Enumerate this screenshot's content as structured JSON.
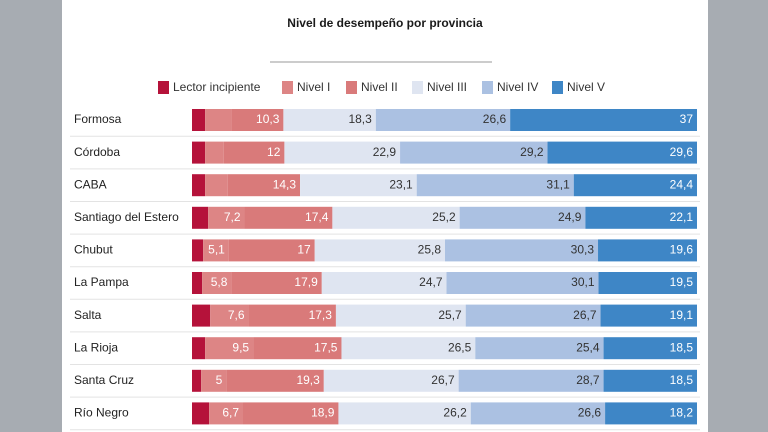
{
  "chart_data": {
    "type": "stacked-bar",
    "orientation": "horizontal",
    "title": "Nivel de desempeño por provincia",
    "categories": [
      "Formosa",
      "Córdoba",
      "CABA",
      "Santiago del Estero",
      "Chubut",
      "La Pampa",
      "Salta",
      "La Rioja",
      "Santa Cruz",
      "Río Negro"
    ],
    "xlim": [
      0,
      100
    ],
    "series": [
      {
        "name": "Lector incipiente",
        "color": "#b5123a",
        "values": [
          2.6,
          2.6,
          2.6,
          3.2,
          2.2,
          2.0,
          3.6,
          2.6,
          1.8,
          3.4
        ]
      },
      {
        "name": "Nivel I",
        "color": "#dd8585",
        "values": [
          5.2,
          3.7,
          4.5,
          7.2,
          5.1,
          5.8,
          7.6,
          9.5,
          5,
          6.7
        ],
        "value_labels": [
          null,
          null,
          null,
          "7,2",
          "5,1",
          "5,8",
          "7,6",
          "9,5",
          "5",
          "6,7"
        ]
      },
      {
        "name": "Nivel II",
        "color": "#d97a7a",
        "values": [
          10.3,
          12,
          14.3,
          17.4,
          17,
          17.9,
          17.3,
          17.5,
          19.3,
          18.9
        ],
        "value_labels": [
          "10,3",
          "12",
          "14,3",
          "17,4",
          "17",
          "17,9",
          "17,3",
          "17,5",
          "19,3",
          "18,9"
        ]
      },
      {
        "name": "Nivel III",
        "color": "#dfe5f1",
        "values": [
          18.3,
          22.9,
          23.1,
          25.2,
          25.8,
          24.7,
          25.7,
          26.5,
          26.7,
          26.2
        ],
        "value_labels": [
          "18,3",
          "22,9",
          "23,1",
          "25,2",
          "25,8",
          "24,7",
          "25,7",
          "26,5",
          "26,7",
          "26,2"
        ]
      },
      {
        "name": "Nivel IV",
        "color": "#abc1e2",
        "values": [
          26.6,
          29.2,
          31.1,
          24.9,
          30.3,
          30.1,
          26.7,
          25.4,
          28.7,
          26.6
        ],
        "value_labels": [
          "26,6",
          "29,2",
          "31,1",
          "24,9",
          "30,3",
          "30,1",
          "26,7",
          "25,4",
          "28,7",
          "26,6"
        ]
      },
      {
        "name": "Nivel V",
        "color": "#3e86c6",
        "values": [
          37,
          29.6,
          24.4,
          22.1,
          19.6,
          19.5,
          19.1,
          18.5,
          18.5,
          18.2
        ],
        "value_labels": [
          "37",
          "29,6",
          "24,4",
          "22,1",
          "19,6",
          "19,5",
          "19,1",
          "18,5",
          "18,5",
          "18,2"
        ]
      }
    ]
  }
}
